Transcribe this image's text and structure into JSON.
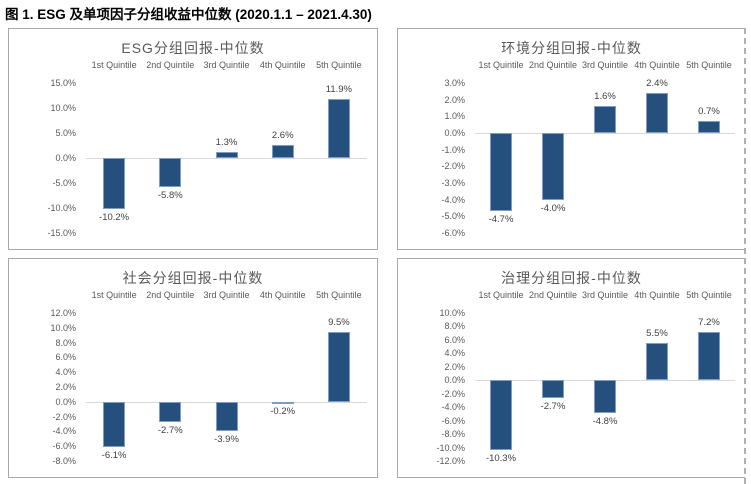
{
  "page": {
    "title": "图 1. ESG 及单项因子分组收益中位数 (2020.1.1 – 2021.4.30)"
  },
  "colors": {
    "bar_fill": "#25507D",
    "bar_border": "#7F9DC2",
    "panel_border": "#A8A8A8",
    "axis_text": "#595959",
    "chart_title_text": "#595959",
    "data_label_text": "#404040",
    "zero_line": "#D9D9D9",
    "dashed_guide": "#B0B0B0",
    "caption_text": "#000000"
  },
  "chart_data": [
    {
      "type": "bar",
      "id": "esg",
      "title": "ESG分组回报-中位数",
      "categories": [
        "1st Quintile",
        "2nd Quintile",
        "3rd Quintile",
        "4th Quintile",
        "5th Quintile"
      ],
      "values": [
        -10.2,
        -5.8,
        1.3,
        2.6,
        11.9
      ],
      "data_labels": [
        "-10.2%",
        "-5.8%",
        "1.3%",
        "2.6%",
        "11.9%"
      ],
      "unit": "%",
      "ylim": [
        -15,
        15
      ],
      "tick_step": 5,
      "ytick_labels": [
        "15.0%",
        "10.0%",
        "5.0%",
        "0.0%",
        "-5.0%",
        "-10.0%",
        "-15.0%"
      ],
      "grid": "zero-line-only",
      "legend": "none"
    },
    {
      "type": "bar",
      "id": "environment",
      "title": "环境分组回报-中位数",
      "categories": [
        "1st Quintile",
        "2nd Quintile",
        "3rd Quintile",
        "4th Quintile",
        "5th Quintile"
      ],
      "values": [
        -4.7,
        -4.0,
        1.6,
        2.4,
        0.7
      ],
      "data_labels": [
        "-4.7%",
        "-4.0%",
        "1.6%",
        "2.4%",
        "0.7%"
      ],
      "unit": "%",
      "ylim": [
        -6,
        3
      ],
      "tick_step": 1,
      "ytick_labels": [
        "3.0%",
        "2.0%",
        "1.0%",
        "0.0%",
        "-1.0%",
        "-2.0%",
        "-3.0%",
        "-4.0%",
        "-5.0%",
        "-6.0%"
      ],
      "grid": "zero-line-only",
      "legend": "none"
    },
    {
      "type": "bar",
      "id": "social",
      "title": "社会分组回报-中位数",
      "categories": [
        "1st Quintile",
        "2nd Quintile",
        "3rd Quintile",
        "4th Quintile",
        "5th Quintile"
      ],
      "values": [
        -6.1,
        -2.7,
        -3.9,
        -0.2,
        9.5
      ],
      "data_labels": [
        "-6.1%",
        "-2.7%",
        "-3.9%",
        "-0.2%",
        "9.5%"
      ],
      "unit": "%",
      "ylim": [
        -8,
        12
      ],
      "tick_step": 2,
      "ytick_labels": [
        "12.0%",
        "10.0%",
        "8.0%",
        "6.0%",
        "4.0%",
        "2.0%",
        "0.0%",
        "-2.0%",
        "-4.0%",
        "-6.0%",
        "-8.0%"
      ],
      "grid": "zero-line-only",
      "legend": "none"
    },
    {
      "type": "bar",
      "id": "governance",
      "title": "治理分组回报-中位数",
      "categories": [
        "1st Quintile",
        "2nd Quintile",
        "3rd Quintile",
        "4th Quintile",
        "5th Quintile"
      ],
      "values": [
        -10.3,
        -2.7,
        -4.8,
        5.5,
        7.2
      ],
      "data_labels": [
        "-10.3%",
        "-2.7%",
        "-4.8%",
        "5.5%",
        "7.2%"
      ],
      "unit": "%",
      "ylim": [
        -12,
        10
      ],
      "tick_step": 2,
      "ytick_labels": [
        "10.0%",
        "8.0%",
        "6.0%",
        "4.0%",
        "2.0%",
        "0.0%",
        "-2.0%",
        "-4.0%",
        "-6.0%",
        "-8.0%",
        "-10.0%",
        "-12.0%"
      ],
      "grid": "zero-line-only",
      "legend": "none"
    }
  ]
}
